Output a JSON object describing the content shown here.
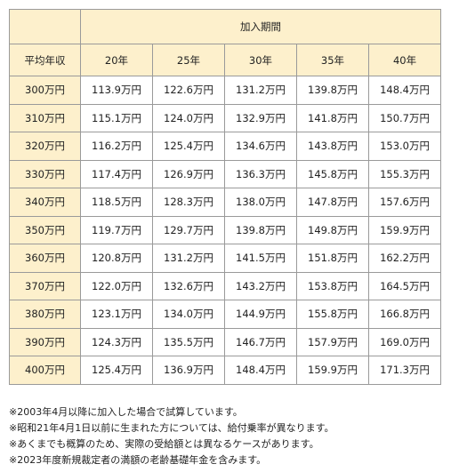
{
  "table": {
    "group_header": "加入期間",
    "row_header_label": "平均年収",
    "columns": [
      "20年",
      "25年",
      "30年",
      "35年",
      "40年"
    ],
    "rows": [
      {
        "income": "300万円",
        "values": [
          "113.9万円",
          "122.6万円",
          "131.2万円",
          "139.8万円",
          "148.4万円"
        ]
      },
      {
        "income": "310万円",
        "values": [
          "115.1万円",
          "124.0万円",
          "132.9万円",
          "141.8万円",
          "150.7万円"
        ]
      },
      {
        "income": "320万円",
        "values": [
          "116.2万円",
          "125.4万円",
          "134.6万円",
          "143.8万円",
          "153.0万円"
        ]
      },
      {
        "income": "330万円",
        "values": [
          "117.4万円",
          "126.9万円",
          "136.3万円",
          "145.8万円",
          "155.3万円"
        ]
      },
      {
        "income": "340万円",
        "values": [
          "118.5万円",
          "128.3万円",
          "138.0万円",
          "147.8万円",
          "157.6万円"
        ]
      },
      {
        "income": "350万円",
        "values": [
          "119.7万円",
          "129.7万円",
          "139.8万円",
          "149.8万円",
          "159.9万円"
        ]
      },
      {
        "income": "360万円",
        "values": [
          "120.8万円",
          "131.2万円",
          "141.5万円",
          "151.8万円",
          "162.2万円"
        ]
      },
      {
        "income": "370万円",
        "values": [
          "122.0万円",
          "132.6万円",
          "143.2万円",
          "153.8万円",
          "164.5万円"
        ]
      },
      {
        "income": "380万円",
        "values": [
          "123.1万円",
          "134.0万円",
          "144.9万円",
          "155.8万円",
          "166.8万円"
        ]
      },
      {
        "income": "390万円",
        "values": [
          "124.3万円",
          "135.5万円",
          "146.7万円",
          "157.9万円",
          "169.0万円"
        ]
      },
      {
        "income": "400万円",
        "values": [
          "125.4万円",
          "136.9万円",
          "148.4万円",
          "159.9万円",
          "171.3万円"
        ]
      }
    ]
  },
  "notes": [
    "※2003年4月以降に加入した場合で試算しています。",
    "※昭和21年4月1日以前に生まれた方については、給付乗率が異なります。",
    "※あくまでも概算のため、実際の受給額とは異なるケースがあります。",
    "※2023年度新規裁定者の満額の老齢基礎年金を含みます。"
  ],
  "colors": {
    "header_background": "#fdf0cc",
    "border": "#9a9a9a"
  }
}
